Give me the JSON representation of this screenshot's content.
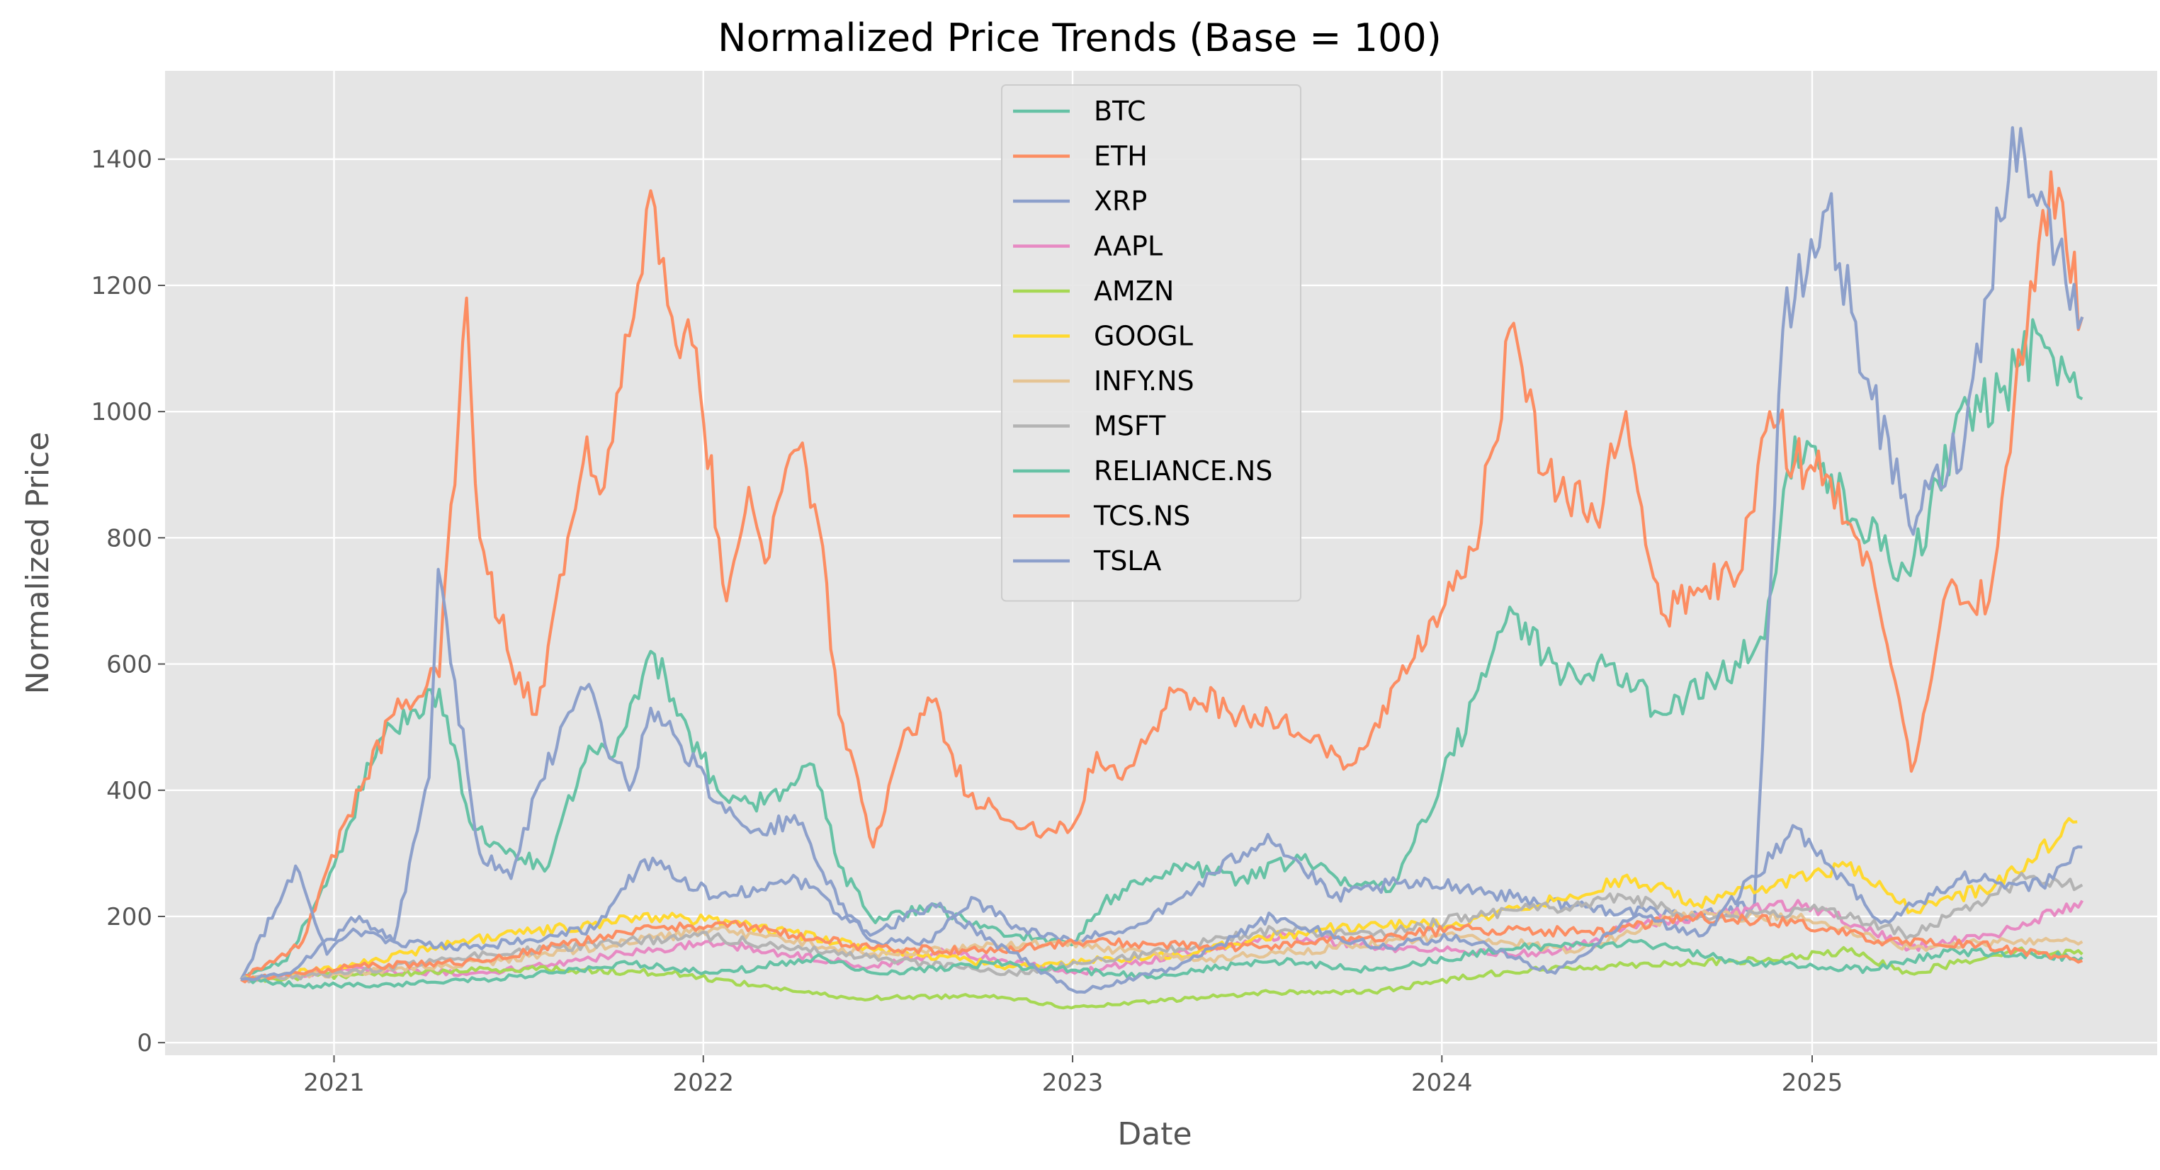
{
  "chart_data": {
    "type": "line",
    "title": "Normalized Price Trends (Base = 100)",
    "xlabel": "Date",
    "ylabel": "Normalized Price",
    "x_ticks": [
      "2021",
      "2022",
      "2023",
      "2024",
      "2025"
    ],
    "x_tick_dates": [
      "2021-01-01",
      "2022-01-01",
      "2023-01-01",
      "2024-01-01",
      "2025-01-01"
    ],
    "y_ticks": [
      0,
      200,
      400,
      600,
      800,
      1000,
      1200,
      1400
    ],
    "xlim": [
      "2020-07-18",
      "2025-12-08"
    ],
    "ylim": [
      -20,
      1540
    ],
    "grid": true,
    "legend_position": "top-center",
    "series": [
      {
        "name": "BTC",
        "color": "#66c2a5",
        "x": [
          "2020-10-01",
          "2020-11-15",
          "2021-01-01",
          "2021-02-15",
          "2021-04-15",
          "2021-05-15",
          "2021-06-20",
          "2021-08-01",
          "2021-09-10",
          "2021-10-01",
          "2021-11-10",
          "2021-12-10",
          "2022-01-15",
          "2022-02-15",
          "2022-03-25",
          "2022-04-20",
          "2022-05-15",
          "2022-06-20",
          "2022-08-15",
          "2022-09-20",
          "2022-11-10",
          "2022-12-31",
          "2023-01-31",
          "2023-03-15",
          "2023-04-15",
          "2023-06-15",
          "2023-08-15",
          "2023-10-01",
          "2023-11-15",
          "2024-01-01",
          "2024-03-12",
          "2024-05-01",
          "2024-06-15",
          "2024-07-10",
          "2024-08-10",
          "2024-10-01",
          "2024-11-15",
          "2024-12-15",
          "2025-01-20",
          "2025-03-10",
          "2025-04-08",
          "2025-05-20",
          "2025-07-10",
          "2025-08-15",
          "2025-09-25"
        ],
        "values": [
          100,
          130,
          280,
          480,
          560,
          350,
          300,
          280,
          470,
          450,
          620,
          520,
          400,
          380,
          400,
          440,
          280,
          190,
          220,
          190,
          170,
          155,
          220,
          260,
          280,
          260,
          290,
          250,
          250,
          420,
          680,
          580,
          600,
          560,
          520,
          580,
          640,
          960,
          900,
          780,
          740,
          960,
          1040,
          1120,
          1020
        ]
      },
      {
        "name": "ETH",
        "color": "#fc8d62",
        "x": [
          "2020-10-01",
          "2020-12-01",
          "2021-01-15",
          "2021-03-01",
          "2021-04-15",
          "2021-05-12",
          "2021-05-25",
          "2021-06-25",
          "2021-07-20",
          "2021-08-20",
          "2021-09-08",
          "2021-09-25",
          "2021-10-20",
          "2021-11-10",
          "2021-12-01",
          "2021-12-25",
          "2022-01-24",
          "2022-02-15",
          "2022-03-03",
          "2022-04-05",
          "2022-04-25",
          "2022-05-15",
          "2022-06-18",
          "2022-07-15",
          "2022-08-15",
          "2022-09-20",
          "2022-11-15",
          "2022-12-31",
          "2023-01-25",
          "2023-02-15",
          "2023-03-10",
          "2023-04-15",
          "2023-06-15",
          "2023-07-15",
          "2023-08-20",
          "2023-09-30",
          "2023-10-31",
          "2023-12-01",
          "2023-12-31",
          "2024-02-01",
          "2024-03-12",
          "2024-04-10",
          "2024-06-01",
          "2024-07-01",
          "2024-08-05",
          "2024-09-10",
          "2024-10-20",
          "2024-11-20",
          "2024-12-15",
          "2025-01-15",
          "2025-02-28",
          "2025-04-09",
          "2025-05-15",
          "2025-06-25",
          "2025-07-20",
          "2025-08-25",
          "2025-09-25"
        ],
        "values": [
          100,
          160,
          360,
          520,
          580,
          1180,
          800,
          600,
          520,
          800,
          960,
          880,
          1120,
          1350,
          1150,
          1100,
          700,
          880,
          760,
          940,
          820,
          520,
          310,
          470,
          540,
          390,
          340,
          340,
          460,
          420,
          480,
          560,
          520,
          520,
          480,
          440,
          500,
          600,
          680,
          780,
          1140,
          900,
          830,
          1000,
          680,
          720,
          740,
          1000,
          920,
          900,
          760,
          430,
          720,
          700,
          1020,
          1380,
          1150
        ]
      },
      {
        "name": "XRP",
        "color": "#8da0cb",
        "x": [
          "2020-10-01",
          "2020-11-24",
          "2020-12-25",
          "2021-01-20",
          "2021-03-01",
          "2021-04-05",
          "2021-04-14",
          "2021-05-25",
          "2021-06-25",
          "2021-07-20",
          "2021-09-06",
          "2021-10-20",
          "2021-11-10",
          "2021-12-10",
          "2022-01-15",
          "2022-03-01",
          "2022-04-01",
          "2022-05-15",
          "2022-06-20",
          "2022-08-15",
          "2022-09-23",
          "2022-11-10",
          "2022-12-31",
          "2023-03-15",
          "2023-07-13",
          "2023-09-15",
          "2023-11-10",
          "2024-01-15",
          "2024-03-12",
          "2024-06-15",
          "2024-09-15",
          "2024-11-05",
          "2024-12-03",
          "2025-01-16",
          "2025-03-01",
          "2025-04-07",
          "2025-06-01",
          "2025-07-18",
          "2025-09-25"
        ],
        "values": [
          100,
          280,
          140,
          180,
          160,
          420,
          750,
          300,
          260,
          400,
          560,
          400,
          530,
          470,
          380,
          330,
          360,
          220,
          160,
          160,
          230,
          180,
          160,
          190,
          330,
          230,
          250,
          250,
          230,
          210,
          200,
          220,
          1130,
          1320,
          1020,
          820,
          960,
          1450,
          1150
        ]
      },
      {
        "name": "AAPL",
        "color": "#e78ac3",
        "x": [
          "2020-10-01",
          "2021-01-15",
          "2021-06-01",
          "2021-09-01",
          "2022-01-03",
          "2022-06-15",
          "2022-09-01",
          "2023-01-03",
          "2023-07-31",
          "2023-10-31",
          "2024-04-19",
          "2024-07-15",
          "2024-12-26",
          "2025-04-08",
          "2025-07-01",
          "2025-09-25"
        ],
        "values": [
          100,
          115,
          110,
          130,
          160,
          120,
          145,
          110,
          170,
          150,
          140,
          190,
          220,
          150,
          170,
          225
        ]
      },
      {
        "name": "AMZN",
        "color": "#a6d854",
        "x": [
          "2020-10-01",
          "2021-07-08",
          "2021-12-01",
          "2022-05-25",
          "2022-10-15",
          "2022-12-31",
          "2023-07-15",
          "2023-10-25",
          "2024-02-15",
          "2024-07-15",
          "2024-11-15",
          "2025-02-05",
          "2025-04-08",
          "2025-07-15",
          "2025-09-25"
        ],
        "values": [
          100,
          118,
          110,
          70,
          75,
          55,
          80,
          80,
          110,
          125,
          130,
          145,
          110,
          145,
          140
        ]
      },
      {
        "name": "GOOGL",
        "color": "#ffd92f",
        "x": [
          "2020-10-01",
          "2021-01-15",
          "2021-05-01",
          "2021-11-15",
          "2022-01-31",
          "2022-06-15",
          "2022-11-03",
          "2023-04-15",
          "2023-09-01",
          "2024-01-15",
          "2024-07-10",
          "2024-09-10",
          "2025-02-04",
          "2025-04-10",
          "2025-07-01",
          "2025-09-20"
        ],
        "values": [
          100,
          120,
          160,
          200,
          190,
          150,
          120,
          140,
          180,
          190,
          260,
          220,
          280,
          210,
          250,
          350
        ]
      },
      {
        "name": "INFY.NS",
        "color": "#e5c494",
        "x": [
          "2020-10-01",
          "2021-03-01",
          "2021-06-15",
          "2022-01-15",
          "2022-06-15",
          "2022-12-15",
          "2023-05-01",
          "2023-09-15",
          "2024-01-15",
          "2024-05-15",
          "2024-08-15",
          "2024-12-13",
          "2025-04-08",
          "2025-07-15",
          "2025-09-25"
        ],
        "values": [
          100,
          115,
          130,
          180,
          140,
          160,
          130,
          150,
          170,
          145,
          200,
          200,
          150,
          160,
          160
        ]
      },
      {
        "name": "MSFT",
        "color": "#b3b3b3",
        "x": [
          "2020-10-01",
          "2021-01-15",
          "2021-06-01",
          "2021-12-27",
          "2022-06-15",
          "2022-11-03",
          "2023-03-15",
          "2023-07-18",
          "2023-10-25",
          "2024-02-01",
          "2024-07-05",
          "2024-09-01",
          "2025-01-15",
          "2025-04-08",
          "2025-07-31",
          "2025-09-25"
        ],
        "values": [
          100,
          110,
          140,
          170,
          135,
          110,
          140,
          180,
          170,
          200,
          230,
          200,
          210,
          170,
          260,
          250
        ]
      },
      {
        "name": "RELIANCE.NS",
        "color": "#66c2a5",
        "x": [
          "2020-10-01",
          "2020-12-15",
          "2021-04-15",
          "2021-07-01",
          "2021-10-19",
          "2022-01-15",
          "2022-04-29",
          "2022-06-20",
          "2022-10-15",
          "2022-12-31",
          "2023-03-20",
          "2023-07-20",
          "2023-10-25",
          "2024-03-15",
          "2024-07-08",
          "2024-10-15",
          "2025-02-28",
          "2025-05-15",
          "2025-09-25"
        ],
        "values": [
          100,
          90,
          95,
          105,
          125,
          110,
          135,
          110,
          125,
          115,
          105,
          130,
          115,
          150,
          160,
          130,
          115,
          145,
          135
        ]
      },
      {
        "name": "TCS.NS",
        "color": "#fc8d62",
        "x": [
          "2020-10-01",
          "2021-01-15",
          "2021-06-01",
          "2021-10-15",
          "2022-01-17",
          "2022-06-15",
          "2022-09-30",
          "2023-01-15",
          "2023-06-15",
          "2023-10-15",
          "2024-01-15",
          "2024-06-15",
          "2024-09-01",
          "2024-12-15",
          "2025-03-15",
          "2025-06-15",
          "2025-09-25"
        ],
        "values": [
          100,
          120,
          130,
          175,
          190,
          150,
          145,
          160,
          150,
          165,
          180,
          175,
          200,
          190,
          160,
          155,
          130
        ]
      },
      {
        "name": "TSLA",
        "color": "#8da0cb",
        "x": [
          "2020-10-01",
          "2020-11-15",
          "2021-01-26",
          "2021-03-01",
          "2021-05-15",
          "2021-09-15",
          "2021-11-04",
          "2022-01-15",
          "2022-04-04",
          "2022-06-15",
          "2022-08-15",
          "2022-10-15",
          "2023-01-05",
          "2023-04-15",
          "2023-07-18",
          "2023-10-31",
          "2024-01-15",
          "2024-04-22",
          "2024-07-10",
          "2024-09-15",
          "2024-12-17",
          "2025-03-10",
          "2025-05-28",
          "2025-08-15",
          "2025-09-25"
        ],
        "values": [
          100,
          110,
          200,
          160,
          150,
          180,
          290,
          230,
          260,
          170,
          220,
          160,
          80,
          120,
          200,
          150,
          170,
          110,
          200,
          170,
          340,
          190,
          260,
          250,
          310
        ]
      }
    ]
  }
}
